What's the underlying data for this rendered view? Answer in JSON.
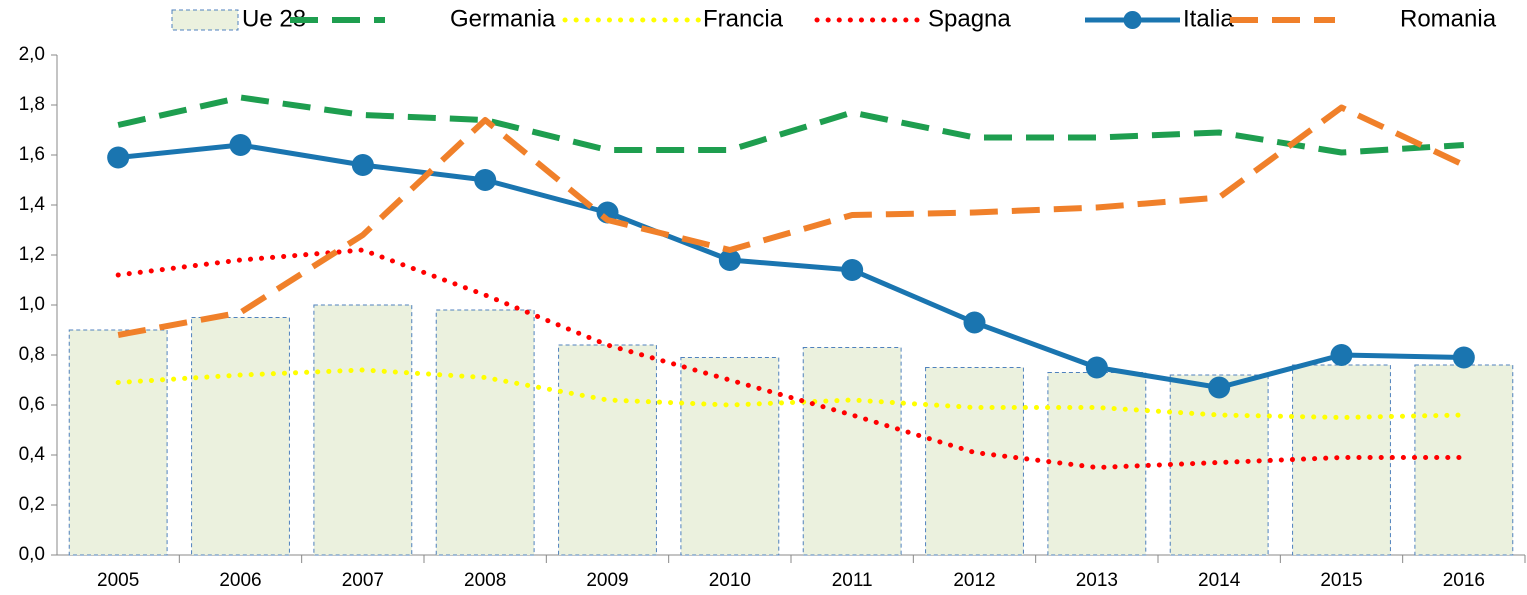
{
  "chart_data": {
    "type": "line",
    "categories": [
      "2005",
      "2006",
      "2007",
      "2008",
      "2009",
      "2010",
      "2011",
      "2012",
      "2013",
      "2014",
      "2015",
      "2016"
    ],
    "ylim": [
      0,
      2
    ],
    "yticks": [
      {
        "value": 0,
        "label": "0,0"
      },
      {
        "value": 0.2,
        "label": "0,2"
      },
      {
        "value": 0.4,
        "label": "0,4"
      },
      {
        "value": 0.6,
        "label": "0,6"
      },
      {
        "value": 0.8,
        "label": "0,8"
      },
      {
        "value": 1.0,
        "label": "1,0"
      },
      {
        "value": 1.2,
        "label": "1,2"
      },
      {
        "value": 1.4,
        "label": "1,4"
      },
      {
        "value": 1.6,
        "label": "1,6"
      },
      {
        "value": 1.8,
        "label": "1,8"
      },
      {
        "value": 2.0,
        "label": "2,0"
      }
    ],
    "legend": "top",
    "series": [
      {
        "name": "Ue 28",
        "kind": "bar",
        "color": "#ebf1de",
        "edge": "#4f81bd",
        "values": [
          0.9,
          0.95,
          1.0,
          0.98,
          0.84,
          0.79,
          0.83,
          0.75,
          0.73,
          0.72,
          0.76,
          0.76
        ]
      },
      {
        "name": "Germania",
        "kind": "line",
        "dash": "dashed",
        "color": "#1e9e4f",
        "values": [
          1.72,
          1.83,
          1.76,
          1.74,
          1.62,
          1.62,
          1.77,
          1.67,
          1.67,
          1.69,
          1.61,
          1.64
        ]
      },
      {
        "name": "Francia",
        "kind": "line",
        "dash": "dotted",
        "color": "#ffff00",
        "values": [
          0.69,
          0.72,
          0.74,
          0.71,
          0.62,
          0.6,
          0.62,
          0.59,
          0.59,
          0.56,
          0.55,
          0.56
        ]
      },
      {
        "name": "Spagna",
        "kind": "line",
        "dash": "dotted",
        "color": "#ff0000",
        "values": [
          1.12,
          1.18,
          1.22,
          1.04,
          0.84,
          0.7,
          0.56,
          0.41,
          0.35,
          0.37,
          0.39,
          0.39
        ]
      },
      {
        "name": "Italia",
        "kind": "line",
        "dash": "solid",
        "marker": true,
        "color": "#1a75b0",
        "values": [
          1.59,
          1.64,
          1.56,
          1.5,
          1.37,
          1.18,
          1.14,
          0.93,
          0.75,
          0.67,
          0.8,
          0.79
        ]
      },
      {
        "name": "Romania",
        "kind": "line",
        "dash": "dashed",
        "color": "#f0802a",
        "values": [
          0.88,
          0.97,
          1.28,
          1.74,
          1.34,
          1.22,
          1.36,
          1.37,
          1.39,
          1.43,
          1.79,
          1.56
        ]
      }
    ]
  }
}
